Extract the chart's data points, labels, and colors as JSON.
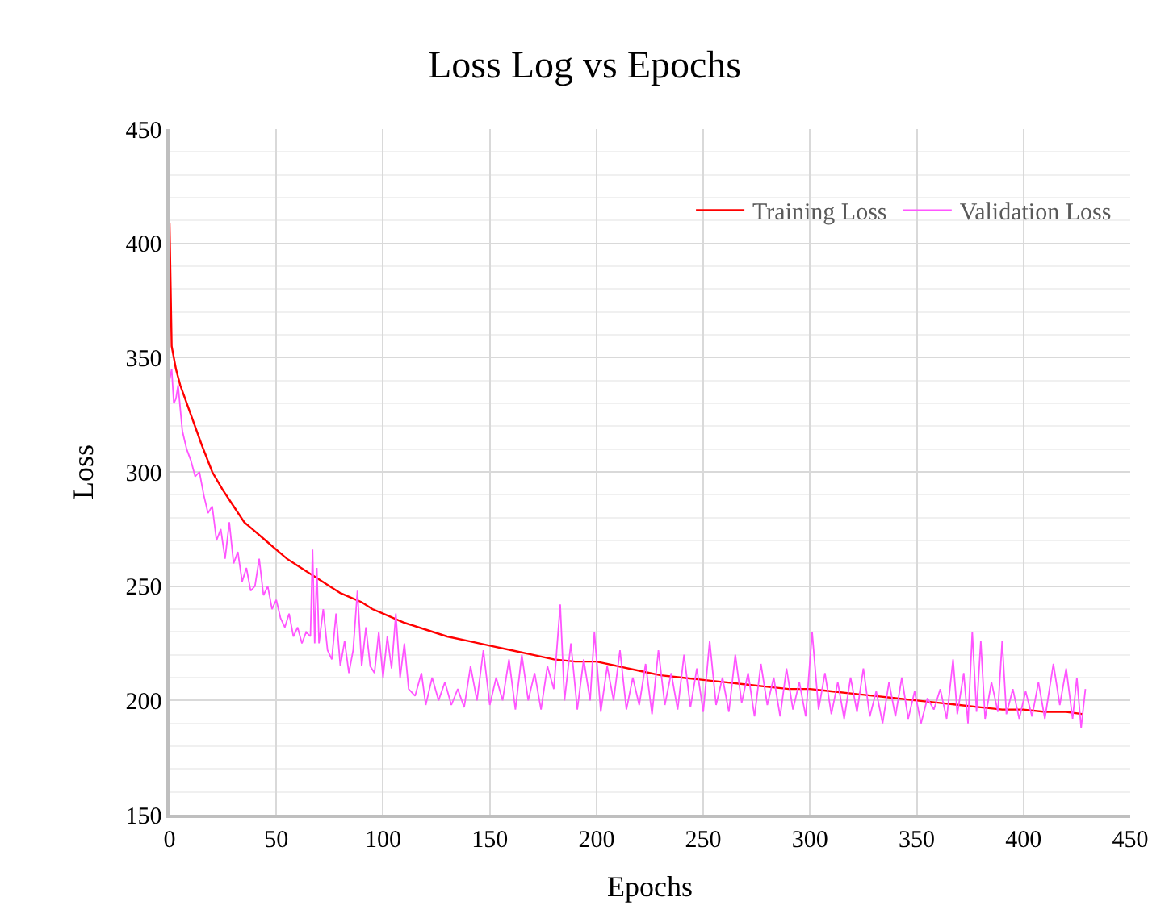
{
  "chart_data": {
    "type": "line",
    "title": "Loss Log vs Epochs",
    "xlabel": "Epochs",
    "ylabel": "Loss",
    "xlim": [
      0,
      450
    ],
    "xticks": [
      0,
      50,
      100,
      150,
      200,
      250,
      300,
      350,
      400,
      450
    ],
    "ylim": [
      150,
      450
    ],
    "yticks": [
      150,
      200,
      250,
      300,
      350,
      400,
      450
    ],
    "grid": true,
    "legend": "top right",
    "marker": "none",
    "line_style": "solid",
    "series": [
      {
        "name": "Training Loss",
        "color": "#ff0000",
        "x": [
          0,
          1,
          3,
          5,
          10,
          15,
          20,
          25,
          30,
          35,
          40,
          45,
          50,
          55,
          60,
          65,
          70,
          75,
          80,
          85,
          90,
          95,
          100,
          110,
          120,
          130,
          140,
          150,
          160,
          170,
          180,
          190,
          200,
          210,
          220,
          230,
          240,
          250,
          260,
          270,
          280,
          290,
          300,
          310,
          320,
          330,
          340,
          350,
          360,
          370,
          380,
          390,
          400,
          410,
          420,
          428
        ],
        "values": [
          409,
          355,
          345,
          338,
          325,
          312,
          300,
          292,
          285,
          278,
          274,
          270,
          266,
          262,
          259,
          256,
          253,
          250,
          247,
          245,
          243,
          240,
          238,
          234,
          231,
          228,
          226,
          224,
          222,
          220,
          218,
          217,
          217,
          215,
          213,
          211,
          210,
          209,
          208,
          207,
          206,
          205,
          205,
          204,
          203,
          202,
          201,
          200,
          199,
          198,
          197,
          196,
          196,
          195,
          195,
          194
        ]
      },
      {
        "name": "Validation Loss",
        "color": "#ff55ff",
        "x": [
          0,
          1,
          2,
          3,
          4,
          6,
          8,
          10,
          12,
          14,
          16,
          18,
          20,
          22,
          24,
          26,
          28,
          30,
          32,
          34,
          36,
          38,
          40,
          42,
          44,
          46,
          48,
          50,
          52,
          54,
          56,
          58,
          60,
          62,
          64,
          66,
          67,
          68,
          69,
          70,
          72,
          74,
          76,
          78,
          80,
          82,
          84,
          86,
          88,
          90,
          92,
          94,
          96,
          98,
          100,
          102,
          104,
          106,
          108,
          110,
          112,
          115,
          118,
          120,
          123,
          126,
          129,
          132,
          135,
          138,
          141,
          144,
          147,
          150,
          153,
          156,
          159,
          162,
          165,
          168,
          171,
          174,
          177,
          180,
          183,
          185,
          188,
          191,
          194,
          197,
          199,
          202,
          205,
          208,
          211,
          214,
          217,
          220,
          223,
          226,
          229,
          232,
          235,
          238,
          241,
          244,
          247,
          250,
          253,
          256,
          259,
          262,
          265,
          268,
          271,
          274,
          277,
          280,
          283,
          286,
          289,
          292,
          295,
          298,
          301,
          304,
          307,
          310,
          313,
          316,
          319,
          322,
          325,
          328,
          331,
          334,
          337,
          340,
          343,
          346,
          349,
          352,
          355,
          358,
          361,
          364,
          367,
          369,
          372,
          374,
          376,
          378,
          380,
          382,
          385,
          388,
          390,
          392,
          395,
          398,
          401,
          404,
          407,
          410,
          414,
          417,
          420,
          423,
          425,
          427,
          429
        ],
        "values": [
          340,
          345,
          330,
          332,
          338,
          318,
          310,
          305,
          298,
          300,
          290,
          282,
          285,
          270,
          275,
          262,
          278,
          260,
          265,
          252,
          258,
          248,
          250,
          262,
          246,
          250,
          240,
          244,
          236,
          232,
          238,
          228,
          232,
          225,
          230,
          228,
          266,
          225,
          258,
          225,
          240,
          222,
          218,
          238,
          215,
          226,
          212,
          222,
          248,
          215,
          232,
          215,
          212,
          230,
          210,
          228,
          214,
          238,
          210,
          225,
          205,
          202,
          212,
          198,
          210,
          200,
          208,
          198,
          205,
          197,
          215,
          200,
          222,
          198,
          210,
          200,
          218,
          196,
          220,
          200,
          212,
          196,
          215,
          205,
          242,
          200,
          225,
          196,
          218,
          200,
          230,
          195,
          215,
          200,
          222,
          196,
          210,
          198,
          216,
          194,
          222,
          198,
          212,
          196,
          220,
          197,
          214,
          195,
          226,
          198,
          210,
          195,
          220,
          199,
          212,
          193,
          216,
          198,
          210,
          193,
          214,
          196,
          208,
          193,
          230,
          196,
          212,
          194,
          208,
          192,
          210,
          195,
          214,
          193,
          204,
          190,
          208,
          193,
          210,
          192,
          204,
          190,
          201,
          196,
          205,
          192,
          218,
          194,
          212,
          190,
          230,
          195,
          226,
          192,
          208,
          195,
          226,
          194,
          205,
          192,
          204,
          193,
          208,
          192,
          216,
          198,
          214,
          192,
          210,
          188,
          205
        ]
      }
    ]
  }
}
